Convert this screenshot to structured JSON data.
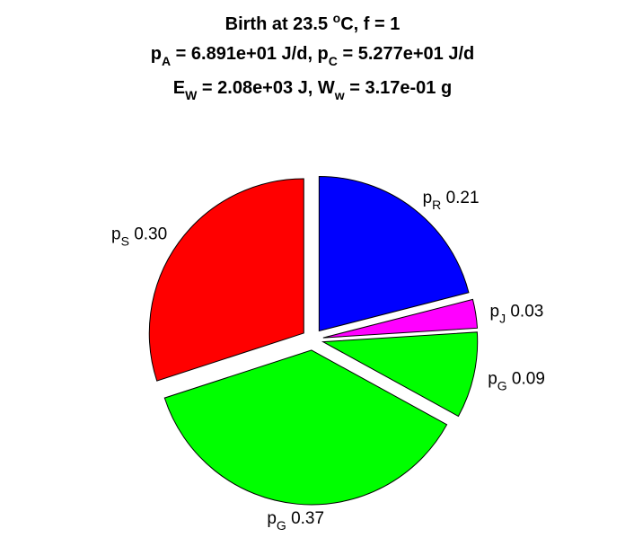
{
  "title": {
    "line1": {
      "pre": "Birth at 23.5 ",
      "sup": "o",
      "post": "C, f = 1"
    },
    "line2": [
      {
        "t": "p"
      },
      {
        "sub": "A"
      },
      {
        "t": " = 6.891e+01 J/d, p"
      },
      {
        "sub": "C"
      },
      {
        "t": " = 5.277e+01 J/d"
      }
    ],
    "line3": [
      {
        "t": "E"
      },
      {
        "sub": "W"
      },
      {
        "t": " = 2.08e+03 J, W"
      },
      {
        "sub": "w"
      },
      {
        "t": " = 3.17e-01 g"
      }
    ]
  },
  "chart_data": {
    "type": "pie",
    "title": "Birth at 23.5 °C, f = 1",
    "slices": [
      {
        "symbol": "p",
        "sub": "R",
        "value": 0.21,
        "label": "0.21",
        "color": "#0000ff"
      },
      {
        "symbol": "p",
        "sub": "J",
        "value": 0.03,
        "label": "0.03",
        "color": "#ff00ff"
      },
      {
        "symbol": "p",
        "sub": "G",
        "value": 0.09,
        "label": "0.09",
        "color": "#00ff00"
      },
      {
        "symbol": "p",
        "sub": "G",
        "value": 0.37,
        "label": "0.37",
        "color": "#00ff00"
      },
      {
        "symbol": "p",
        "sub": "S",
        "value": 0.3,
        "label": "0.30",
        "color": "#ff0000"
      }
    ],
    "exploded": [
      true,
      true,
      true,
      true,
      true
    ]
  }
}
